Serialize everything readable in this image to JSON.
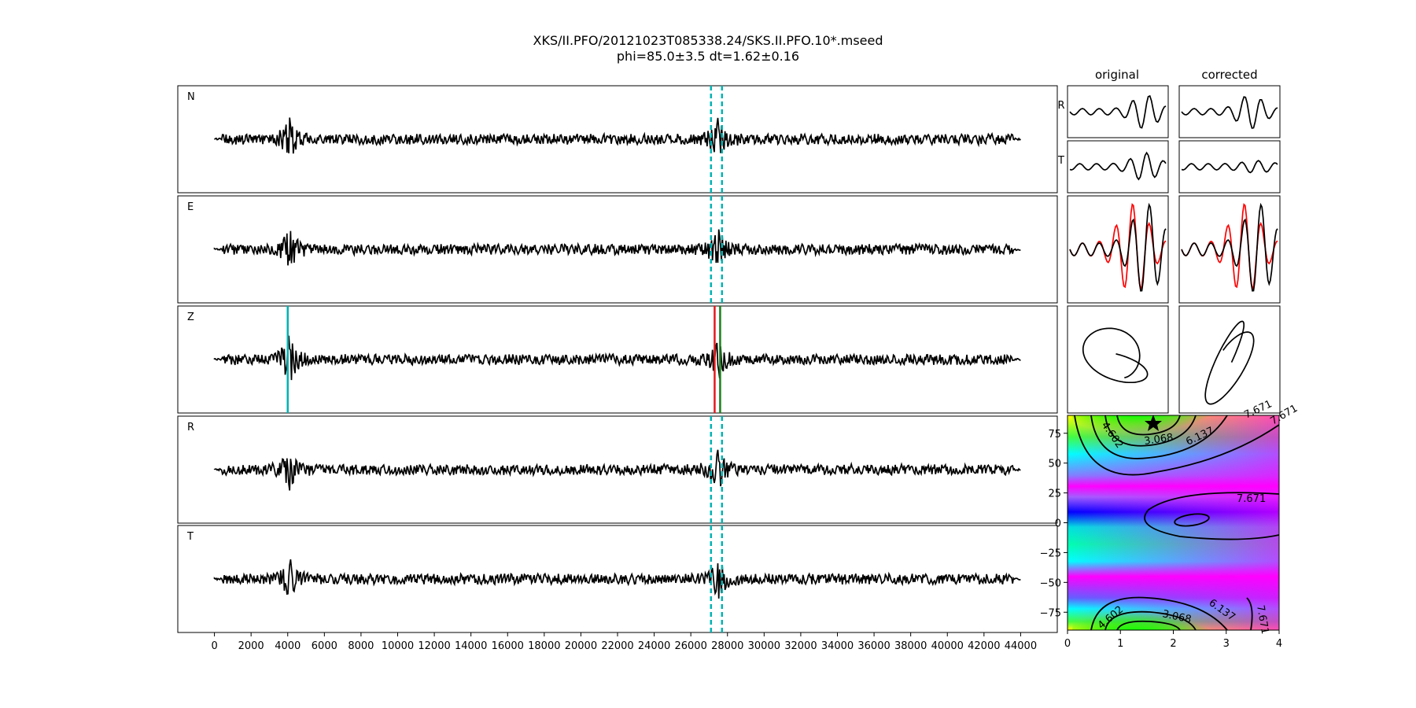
{
  "figure": {
    "title_line1": "XKS/II.PFO/20121023T085338.24/SKS.II.PFO.10*.mseed",
    "title_line2": "phi=85.0±3.5 dt=1.62±0.16"
  },
  "colors": {
    "trace": "#000000",
    "window_marker": "#00b3b3",
    "phase_pick": "#00b3b3",
    "pick_red": "#e41a1c",
    "pick_green": "#1a7f1a",
    "corrected_trace": "#ff0000"
  },
  "chart_data": [
    {
      "type": "line",
      "id": "seismograms",
      "panels": [
        "N",
        "E",
        "Z",
        "R",
        "T"
      ],
      "x": {
        "label": "",
        "lim": [
          -2000,
          46000
        ],
        "ticks": [
          "0",
          "2000",
          "4000",
          "6000",
          "8000",
          "10000",
          "12000",
          "14000",
          "16000",
          "18000",
          "20000",
          "22000",
          "24000",
          "26000",
          "28000",
          "30000",
          "32000",
          "34000",
          "36000",
          "38000",
          "40000",
          "42000",
          "44000"
        ]
      },
      "data_range": [
        0,
        44000
      ],
      "window_markers": {
        "style": "dashed",
        "x": [
          27100,
          27700
        ]
      },
      "phase_picks": [
        {
          "panel": "Z",
          "x": 4000,
          "color": "cyan"
        },
        {
          "panel": "Z",
          "x": 27300,
          "color": "red"
        },
        {
          "panel": "Z",
          "x": 27600,
          "color": "green"
        }
      ],
      "arrivals": [
        {
          "x": 4100,
          "label": ""
        },
        {
          "x": 27500,
          "label": ""
        }
      ]
    },
    {
      "type": "line",
      "id": "particle-window-traces",
      "column_titles": [
        "original",
        "corrected"
      ],
      "row_labels": [
        "R",
        "T",
        "",
        ""
      ],
      "series": [
        {
          "name": "",
          "values": []
        }
      ]
    },
    {
      "type": "heatmap",
      "id": "error-surface",
      "x": {
        "label": "",
        "lim": [
          0,
          4
        ],
        "ticks": [
          "0",
          "1",
          "2",
          "3",
          "4"
        ]
      },
      "y": {
        "label": "",
        "lim": [
          -90,
          90
        ],
        "ticks": [
          "75",
          "50",
          "25",
          "0",
          "−25",
          "−50",
          "−75"
        ]
      },
      "contour_labels": [
        "7.671",
        "7.671",
        "6.137",
        "6.137",
        "4.602",
        "4.602",
        "3.068",
        "3.068",
        "7.671",
        "7.671"
      ],
      "best_fit": {
        "dt": 1.62,
        "phi": 85.0
      }
    }
  ]
}
